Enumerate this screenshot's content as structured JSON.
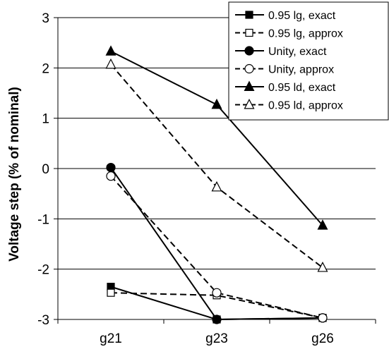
{
  "chart_data": {
    "type": "line",
    "categories": [
      "g21",
      "g23",
      "g26"
    ],
    "ylabel": "Voltage step (% of nominal)",
    "xlabel": "",
    "ylim": [
      -3,
      3
    ],
    "yticks": [
      "3",
      "2",
      "1",
      "0",
      "-1",
      "-2",
      "-3"
    ],
    "grid": "horizontal",
    "legend_position": "top-right",
    "series": [
      {
        "name": "0.95 lg, exact",
        "values": [
          -2.35,
          -3.0,
          -2.97
        ],
        "marker": "square",
        "filled": true,
        "dashed": false
      },
      {
        "name": "0.95 lg, approx",
        "values": [
          -2.47,
          -2.52,
          -2.97
        ],
        "marker": "square",
        "filled": false,
        "dashed": true
      },
      {
        "name": "Unity, exact",
        "values": [
          0.02,
          -3.0,
          -2.97
        ],
        "marker": "circle",
        "filled": true,
        "dashed": false
      },
      {
        "name": "Unity, approx",
        "values": [
          -0.15,
          -2.47,
          -2.97
        ],
        "marker": "circle",
        "filled": false,
        "dashed": true
      },
      {
        "name": "0.95 ld, exact",
        "values": [
          2.33,
          1.27,
          -1.13
        ],
        "marker": "triangle",
        "filled": true,
        "dashed": false
      },
      {
        "name": "0.95 ld, approx",
        "values": [
          2.07,
          -0.37,
          -1.97
        ],
        "marker": "triangle",
        "filled": false,
        "dashed": true
      }
    ]
  },
  "colors": {
    "line": "#000000",
    "grid": "#000000",
    "background": "#ffffff"
  }
}
